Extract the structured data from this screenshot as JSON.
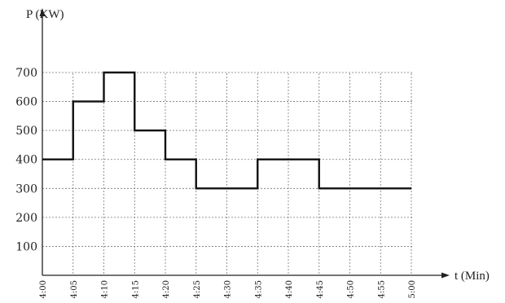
{
  "chart_data": {
    "type": "line",
    "step": true,
    "title": "",
    "ylabel": "P (KW)",
    "xlabel": "t (Min)",
    "x_categories": [
      "4:00",
      "4:05",
      "4:10",
      "4:15",
      "4:20",
      "4:25",
      "4:30",
      "4:35",
      "4:40",
      "4:45",
      "4:50",
      "4:55",
      "5:00"
    ],
    "y_ticks": [
      100,
      200,
      300,
      400,
      500,
      600,
      700
    ],
    "ylim": [
      0,
      700
    ],
    "grid": true,
    "series": [
      {
        "segments": [
          {
            "start": "4:00",
            "end": "4:05",
            "value": 400
          },
          {
            "start": "4:05",
            "end": "4:10",
            "value": 600
          },
          {
            "start": "4:10",
            "end": "4:15",
            "value": 700
          },
          {
            "start": "4:15",
            "end": "4:20",
            "value": 500
          },
          {
            "start": "4:20",
            "end": "4:25",
            "value": 400
          },
          {
            "start": "4:25",
            "end": "4:35",
            "value": 300
          },
          {
            "start": "4:35",
            "end": "4:45",
            "value": 400
          },
          {
            "start": "4:45",
            "end": "5:00",
            "value": 300
          }
        ]
      }
    ]
  }
}
